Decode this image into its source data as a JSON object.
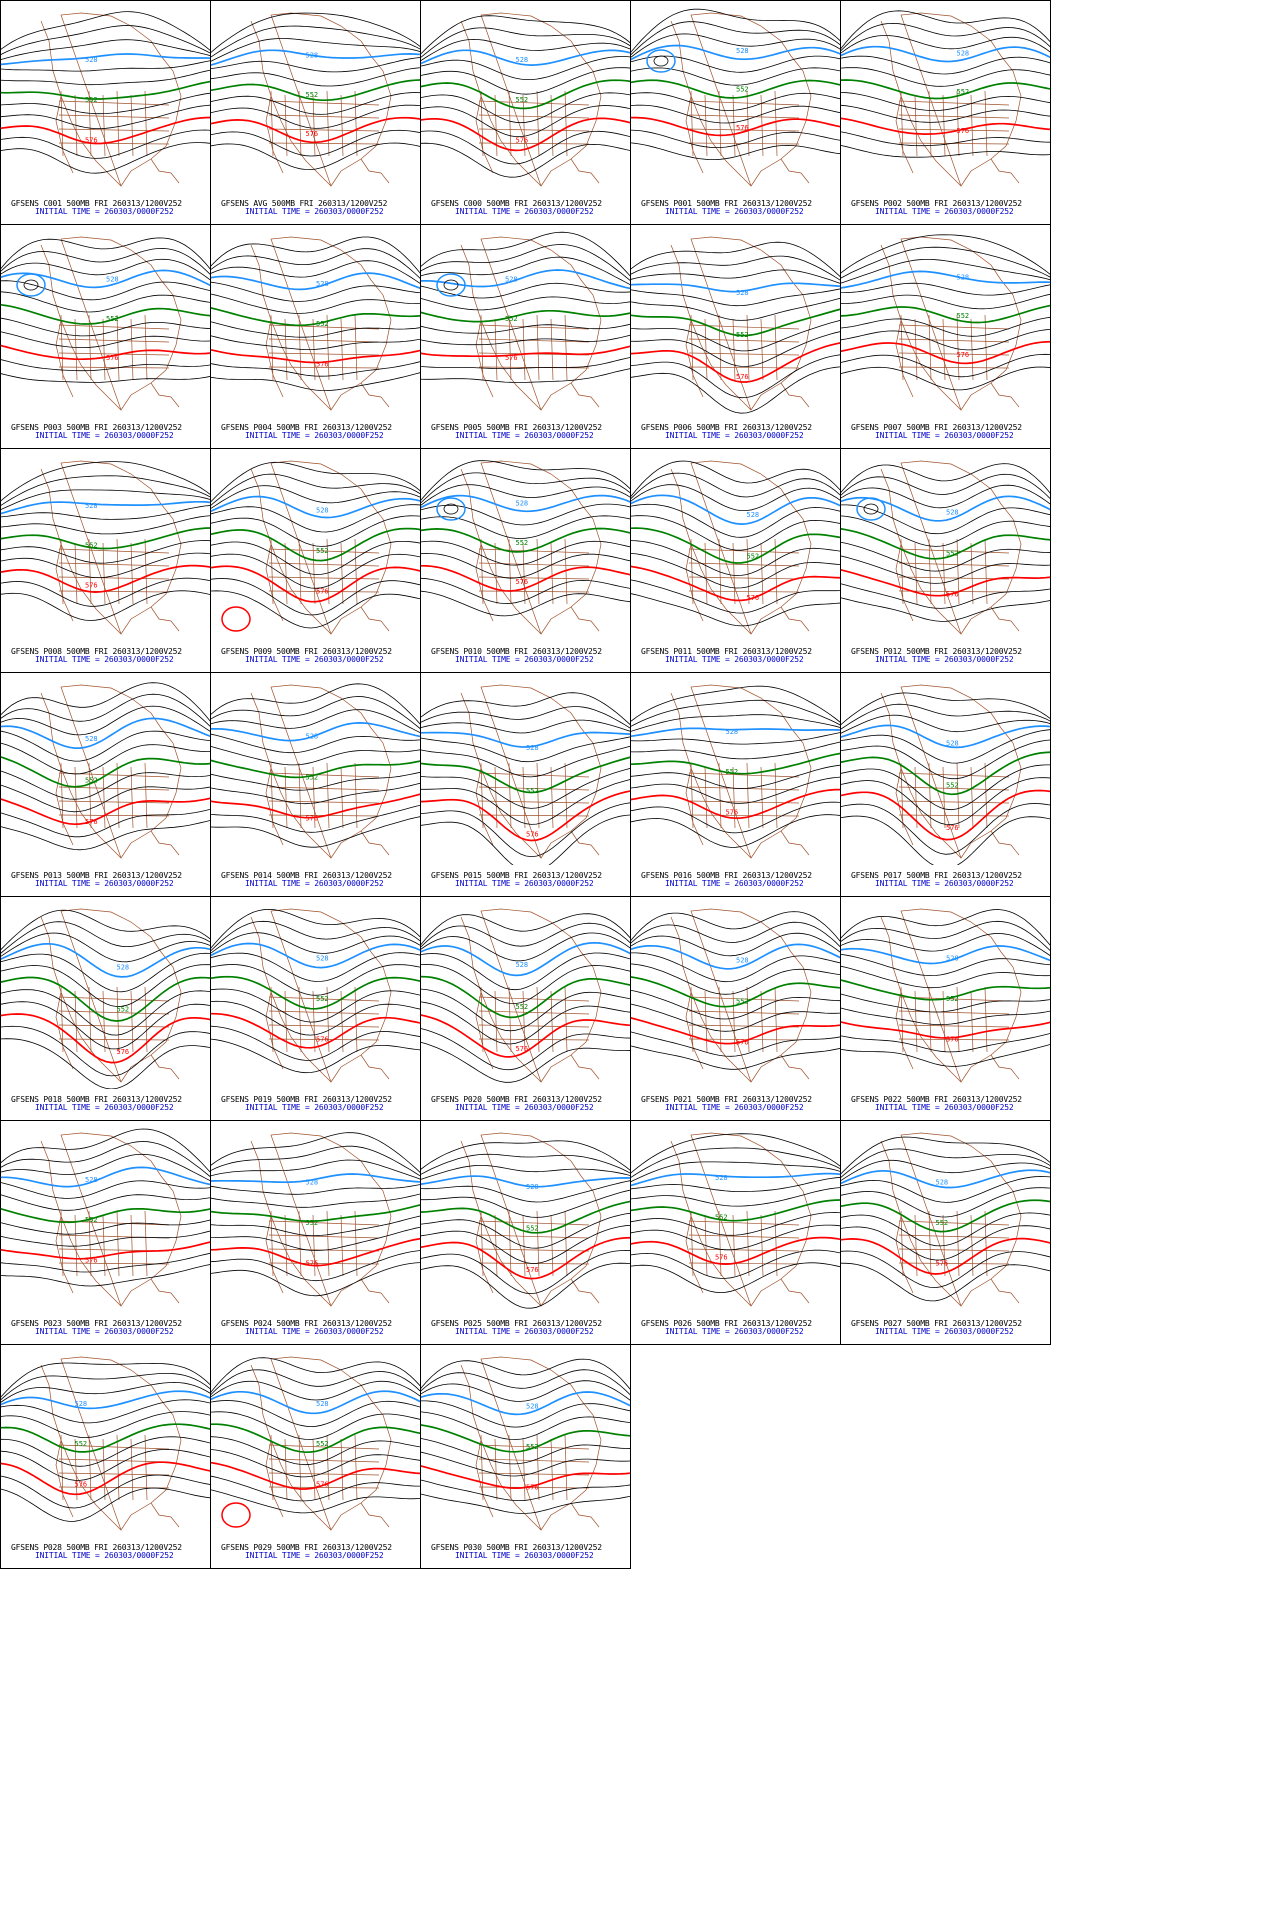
{
  "colors": {
    "contour": "#000000",
    "c528": "#1e90ff",
    "c552": "#008000",
    "c576": "#ff0000",
    "map": "#a0522d",
    "caption_line1": "#000000",
    "caption_line2": "#0000cc"
  },
  "initial_time_line": "INITIAL TIME = 260303/0000F252",
  "contour_labels": {
    "blue": "528",
    "green": "552",
    "red": "576"
  },
  "panels": [
    {
      "id": "C001",
      "title": "GFSENS C001 500MB FRI 260313/1200V252",
      "amp": 0.3,
      "lon": 0.4,
      "cut": false,
      "redlow": false
    },
    {
      "id": "AVG",
      "title": "GFSENS AVG 500MB FRI 260313/1200V252",
      "amp": 0.2,
      "lon": 0.45,
      "cut": false,
      "redlow": false
    },
    {
      "id": "C000",
      "title": "GFSENS C000 500MB FRI 260313/1200V252",
      "amp": 0.3,
      "lon": 0.45,
      "cut": false,
      "redlow": false
    },
    {
      "id": "P001",
      "title": "GFSENS P001 500MB FRI 260313/1200V252",
      "amp": 0.1,
      "lon": 0.5,
      "cut": true,
      "redlow": false
    },
    {
      "id": "P002",
      "title": "GFSENS P002 500MB FRI 260313/1200V252",
      "amp": 0.15,
      "lon": 0.55,
      "cut": false,
      "redlow": false
    },
    {
      "id": "P003",
      "title": "GFSENS P003 500MB FRI 260313/1200V252",
      "amp": 0.2,
      "lon": 0.5,
      "cut": true,
      "redlow": false
    },
    {
      "id": "P004",
      "title": "GFSENS P004 500MB FRI 260313/1200V252",
      "amp": 0.3,
      "lon": 0.5,
      "cut": false,
      "redlow": false
    },
    {
      "id": "P005",
      "title": "GFSENS P005 500MB FRI 260313/1200V252",
      "amp": 0.2,
      "lon": 0.4,
      "cut": true,
      "redlow": false
    },
    {
      "id": "P006",
      "title": "GFSENS P006 500MB FRI 260313/1200V252",
      "amp": 0.5,
      "lon": 0.5,
      "cut": false,
      "redlow": false
    },
    {
      "id": "P007",
      "title": "GFSENS P007 500MB FRI 260313/1200V252",
      "amp": 0.15,
      "lon": 0.55,
      "cut": false,
      "redlow": false
    },
    {
      "id": "P008",
      "title": "GFSENS P008 500MB FRI 260313/1200V252",
      "amp": 0.25,
      "lon": 0.4,
      "cut": false,
      "redlow": false
    },
    {
      "id": "P009",
      "title": "GFSENS P009 500MB FRI 260313/1200V252",
      "amp": 0.35,
      "lon": 0.5,
      "cut": false,
      "redlow": true
    },
    {
      "id": "P010",
      "title": "GFSENS P010 500MB FRI 260313/1200V252",
      "amp": 0.2,
      "lon": 0.45,
      "cut": true,
      "redlow": false
    },
    {
      "id": "P011",
      "title": "GFSENS P011 500MB FRI 260313/1200V252",
      "amp": 0.45,
      "lon": 0.55,
      "cut": false,
      "redlow": false
    },
    {
      "id": "P012",
      "title": "GFSENS P012 500MB FRI 260313/1200V252",
      "amp": 0.4,
      "lon": 0.5,
      "cut": true,
      "redlow": false
    },
    {
      "id": "P013",
      "title": "GFSENS P013 500MB FRI 260313/1200V252",
      "amp": 0.45,
      "lon": 0.4,
      "cut": false,
      "redlow": false
    },
    {
      "id": "P014",
      "title": "GFSENS P014 500MB FRI 260313/1200V252",
      "amp": 0.4,
      "lon": 0.45,
      "cut": false,
      "redlow": false
    },
    {
      "id": "P015",
      "title": "GFSENS P015 500MB FRI 260313/1200V252",
      "amp": 0.65,
      "lon": 0.5,
      "cut": false,
      "redlow": false
    },
    {
      "id": "P016",
      "title": "GFSENS P016 500MB FRI 260313/1200V252",
      "amp": 0.3,
      "lon": 0.45,
      "cut": false,
      "redlow": false
    },
    {
      "id": "P017",
      "title": "GFSENS P017 500MB FRI 260313/1200V252",
      "amp": 0.55,
      "lon": 0.5,
      "cut": false,
      "redlow": false
    },
    {
      "id": "P018",
      "title": "GFSENS P018 500MB FRI 260313/1200V252",
      "amp": 0.55,
      "lon": 0.55,
      "cut": false,
      "redlow": false
    },
    {
      "id": "P019",
      "title": "GFSENS P019 500MB FRI 260313/1200V252",
      "amp": 0.35,
      "lon": 0.5,
      "cut": false,
      "redlow": false
    },
    {
      "id": "P020",
      "title": "GFSENS P020 500MB FRI 260313/1200V252",
      "amp": 0.5,
      "lon": 0.45,
      "cut": false,
      "redlow": false
    },
    {
      "id": "P021",
      "title": "GFSENS P021 500MB FRI 260313/1200V252",
      "amp": 0.4,
      "lon": 0.5,
      "cut": false,
      "redlow": false
    },
    {
      "id": "P022",
      "title": "GFSENS P022 500MB FRI 260313/1200V252",
      "amp": 0.35,
      "lon": 0.5,
      "cut": false,
      "redlow": false
    },
    {
      "id": "P023",
      "title": "GFSENS P023 500MB FRI 260313/1200V252",
      "amp": 0.3,
      "lon": 0.4,
      "cut": false,
      "redlow": false
    },
    {
      "id": "P024",
      "title": "GFSENS P024 500MB FRI 260313/1200V252",
      "amp": 0.35,
      "lon": 0.45,
      "cut": false,
      "redlow": false
    },
    {
      "id": "P025",
      "title": "GFSENS P025 500MB FRI 260313/1200V252",
      "amp": 0.45,
      "lon": 0.5,
      "cut": false,
      "redlow": false
    },
    {
      "id": "P026",
      "title": "GFSENS P026 500MB FRI 260313/1200V252",
      "amp": 0.25,
      "lon": 0.4,
      "cut": false,
      "redlow": false
    },
    {
      "id": "P027",
      "title": "GFSENS P027 500MB FRI 260313/1200V252",
      "amp": 0.35,
      "lon": 0.45,
      "cut": false,
      "redlow": false
    },
    {
      "id": "P028",
      "title": "GFSENS P028 500MB FRI 260313/1200V252",
      "amp": 0.3,
      "lon": 0.35,
      "cut": false,
      "redlow": false
    },
    {
      "id": "P029",
      "title": "GFSENS P029 500MB FRI 260313/1200V252",
      "amp": 0.3,
      "lon": 0.5,
      "cut": false,
      "redlow": true
    },
    {
      "id": "P030",
      "title": "GFSENS P030 500MB FRI 260313/1200V252",
      "amp": 0.35,
      "lon": 0.5,
      "cut": false,
      "redlow": false
    }
  ]
}
